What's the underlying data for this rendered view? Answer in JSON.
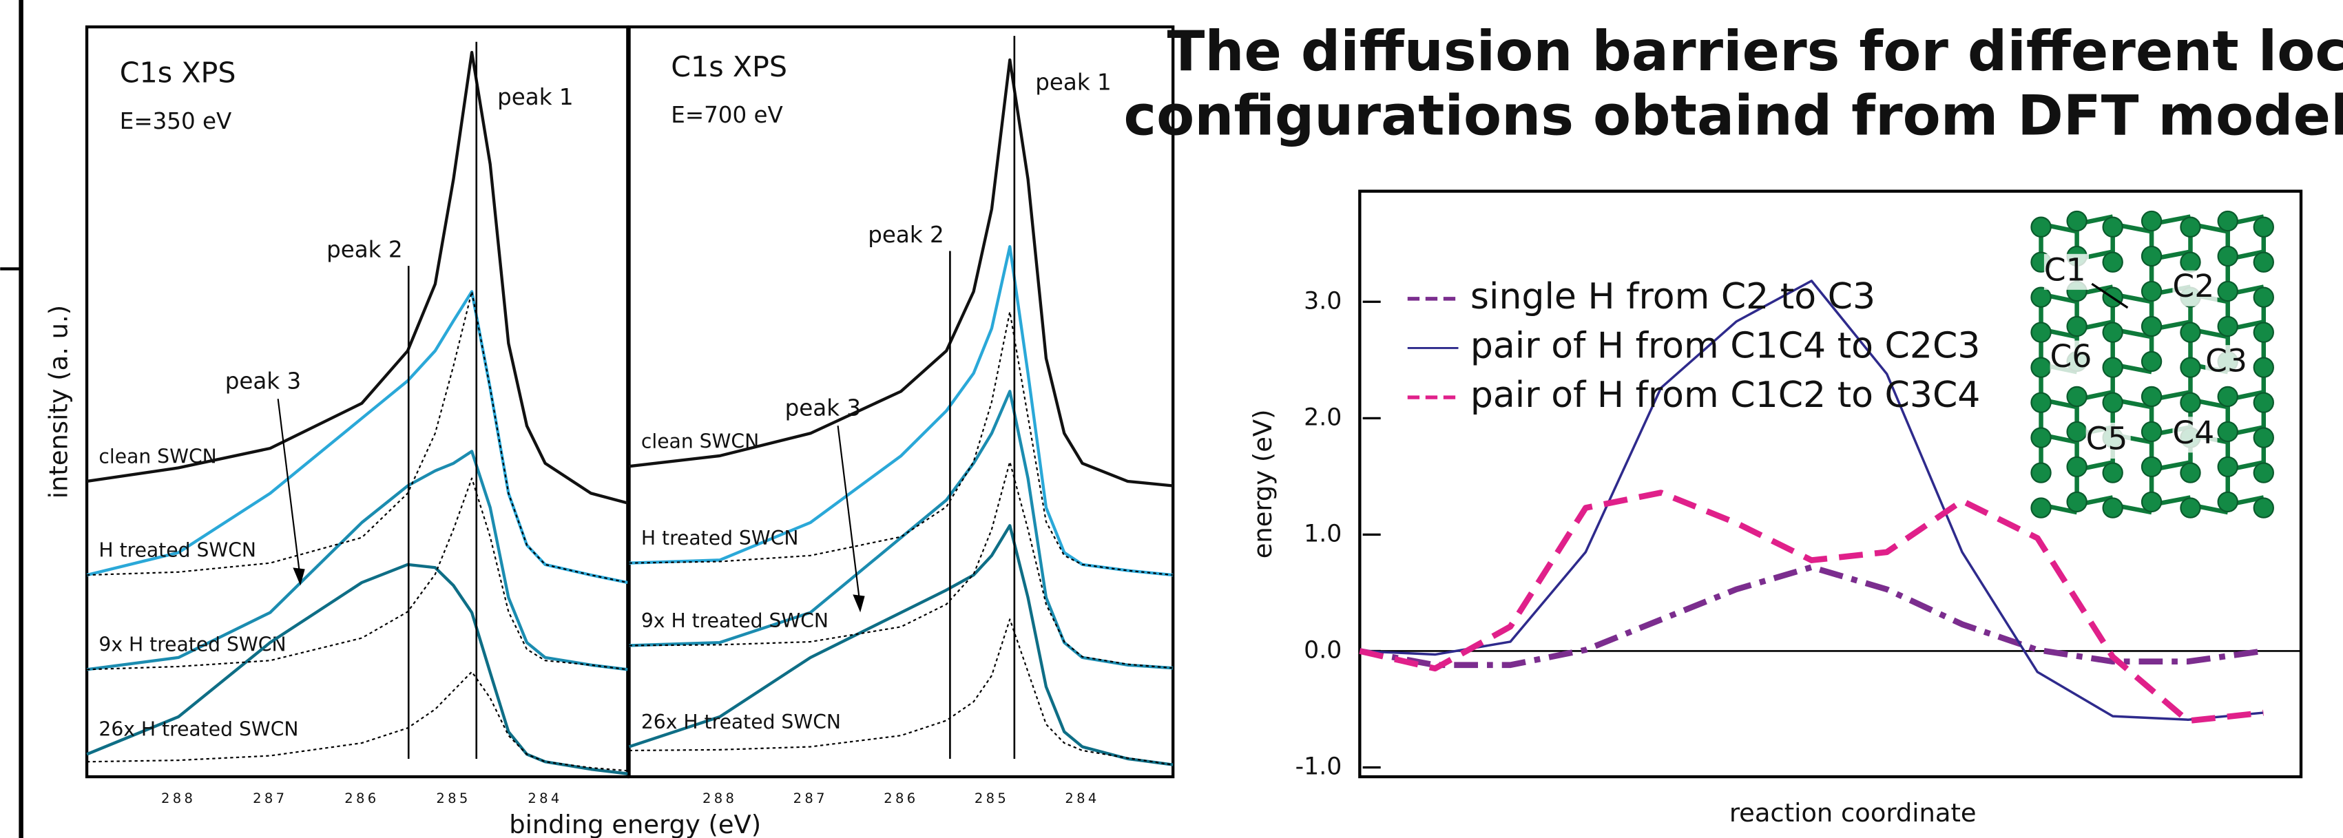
{
  "chart_data": [
    {
      "type": "line",
      "annotations": [
        "C1s XPS",
        "E=350 eV"
      ],
      "xlabel": "binding energy (eV)",
      "ylabel": "intensity (a. u.)",
      "x": [
        289,
        288,
        287,
        286,
        285.5,
        285.2,
        285,
        284.8,
        284.6,
        284.4,
        284.2,
        284,
        283.5,
        283.1
      ],
      "xlim": [
        289,
        283.1
      ],
      "xticks": [
        288,
        287,
        286,
        285,
        284
      ],
      "ylim": [
        0,
        100
      ],
      "series": [
        {
          "name": "clean SWCN",
          "color": "#111111",
          "style": "solid",
          "values": [
            39.4,
            41.2,
            43.8,
            49.8,
            56.8,
            65.7,
            79.7,
            96.6,
            81.7,
            57.8,
            46.8,
            41.8,
            37.8,
            36.5
          ]
        },
        {
          "name": "H treated SWCN",
          "color": "#2aa8d8",
          "style": "solid",
          "values": [
            26.9,
            29.9,
            37.8,
            47.8,
            52.8,
            56.8,
            60.8,
            64.7,
            51.8,
            37.8,
            30.9,
            28.3,
            26.9,
            25.9
          ]
        },
        {
          "name": "9x H treated SWCN",
          "color": "#1b8cb0",
          "style": "solid",
          "values": [
            14.3,
            15.9,
            21.9,
            33.9,
            38.8,
            40.8,
            41.8,
            43.4,
            35.9,
            23.9,
            17.9,
            15.9,
            14.9,
            14.3
          ]
        },
        {
          "name": "26x H treated SWCN",
          "color": "#0e6e86",
          "style": "solid",
          "values": [
            3.0,
            8.0,
            17.9,
            25.9,
            28.3,
            27.9,
            25.5,
            21.9,
            13.9,
            6.0,
            3.0,
            2.0,
            1.0,
            0.4
          ]
        },
        {
          "color": "#000000",
          "style": "dotted",
          "values": [
            26.9,
            27.3,
            28.5,
            31.9,
            37.8,
            45.8,
            54.8,
            64.7,
            51.8,
            37.8,
            30.9,
            28.3,
            26.9,
            25.9
          ]
        },
        {
          "color": "#000000",
          "style": "dotted",
          "values": [
            14.3,
            14.7,
            15.5,
            18.5,
            22,
            27,
            33,
            39.8,
            32,
            22,
            17,
            15.5,
            14.9,
            14.3
          ]
        },
        {
          "color": "#000000",
          "style": "dotted",
          "values": [
            2.0,
            2.2,
            2.8,
            4.5,
            6.5,
            9.0,
            11.5,
            14.0,
            10.5,
            5.5,
            3.0,
            2.0,
            1.2,
            0.8
          ]
        }
      ],
      "markers": [
        {
          "label": "peak 1",
          "x": 284.75,
          "style": "line"
        },
        {
          "label": "peak 2",
          "x": 285.49,
          "style": "line"
        },
        {
          "label": "peak 3",
          "x": 286.67,
          "style": "arrow"
        }
      ]
    },
    {
      "type": "line",
      "annotations": [
        "C1s XPS",
        "E=700 eV"
      ],
      "x": [
        289,
        288,
        287,
        286,
        285.5,
        285.2,
        285,
        284.8,
        284.6,
        284.4,
        284.2,
        284,
        283.5,
        283.0
      ],
      "xlim": [
        289,
        283.0
      ],
      "xticks": [
        288,
        287,
        286,
        285,
        284
      ],
      "ylim": [
        0,
        100
      ],
      "series": [
        {
          "name": "clean SWCN",
          "color": "#111111",
          "style": "solid",
          "values": [
            41.4,
            42.8,
            45.8,
            51.4,
            56.8,
            64.7,
            75.7,
            95.6,
            79.7,
            55.8,
            45.8,
            41.8,
            39.4,
            38.8
          ]
        },
        {
          "name": "H treated SWCN",
          "color": "#2aa8d8",
          "style": "solid",
          "values": [
            28.5,
            28.9,
            33.9,
            42.8,
            48.8,
            53.8,
            59.8,
            70.7,
            53.8,
            35.9,
            29.9,
            28.3,
            27.5,
            26.9
          ]
        },
        {
          "name": "9x H treated SWCN",
          "color": "#1b8cb0",
          "style": "solid",
          "values": [
            17.5,
            17.9,
            21.9,
            31.9,
            36.9,
            41.8,
            45.8,
            51.4,
            39.8,
            23.9,
            17.9,
            15.9,
            14.9,
            14.5
          ]
        },
        {
          "name": "26x H treated SWCN",
          "color": "#0e6e86",
          "style": "solid",
          "values": [
            4.0,
            8.0,
            15.9,
            21.9,
            24.9,
            26.9,
            29.5,
            33.5,
            23.9,
            12.0,
            6.0,
            4.0,
            2.4,
            1.6
          ]
        },
        {
          "color": "#000000",
          "style": "dotted",
          "values": [
            28.5,
            28.7,
            29.5,
            32,
            36,
            42,
            50,
            62,
            48,
            34,
            29.5,
            28.3,
            27.5,
            26.9
          ]
        },
        {
          "color": "#000000",
          "style": "dotted",
          "values": [
            17.5,
            17.6,
            18,
            20,
            23,
            27,
            33,
            42,
            33,
            23,
            18,
            16,
            15,
            14.5
          ]
        },
        {
          "color": "#000000",
          "style": "dotted",
          "values": [
            3.5,
            3.6,
            4,
            5.5,
            7.5,
            10,
            13.5,
            21,
            14,
            7,
            4.5,
            3.5,
            2.5,
            1.6
          ]
        }
      ],
      "markers": [
        {
          "label": "peak 1",
          "x": 284.75,
          "style": "line"
        },
        {
          "label": "peak 2",
          "x": 285.46,
          "style": "line"
        },
        {
          "label": "peak 3",
          "x": 286.45,
          "style": "arrow"
        }
      ]
    },
    {
      "type": "line",
      "title": [
        "The diffusion barriers for different local",
        "configurations obtaind from DFT modeling"
      ],
      "xlabel": "reaction coordinate",
      "ylabel": "energy (eV)",
      "x": [
        0,
        8,
        16,
        24,
        32,
        40,
        48,
        56,
        64,
        72,
        80,
        88,
        96
      ],
      "xlim": [
        0,
        100
      ],
      "ylim": [
        -1.08,
        3.95
      ],
      "yticks": [
        {
          "value": 3,
          "label": "3.0"
        },
        {
          "value": 2,
          "label": "2.0"
        },
        {
          "value": 1,
          "label": "1.0"
        },
        {
          "value": 0,
          "label": "0.0"
        },
        {
          "value": -1,
          "label": "-1.0"
        }
      ],
      "zero_line": true,
      "legend": "upper left",
      "series": [
        {
          "name": "single H from C2 to C3",
          "color": "#7b2d8e",
          "style": "dashdot",
          "values": [
            0,
            -0.12,
            -0.12,
            0.01,
            0.27,
            0.53,
            0.72,
            0.53,
            0.23,
            0.01,
            -0.09,
            -0.09,
            0.0
          ]
        },
        {
          "name": "pair of H from C1C4 to C2C3",
          "color": "#2e2a8c",
          "style": "solid",
          "values": [
            0,
            -0.03,
            0.08,
            0.85,
            2.26,
            2.83,
            3.18,
            2.38,
            0.85,
            -0.18,
            -0.56,
            -0.59,
            -0.53
          ]
        },
        {
          "name": "pair of H from C1C2 to C3C4",
          "color": "#e0208a",
          "style": "dashed",
          "values": [
            0,
            -0.15,
            0.21,
            1.23,
            1.36,
            1.1,
            0.78,
            0.85,
            1.29,
            0.97,
            -0.05,
            -0.6,
            -0.53
          ]
        }
      ],
      "inset_labels": [
        "C1",
        "C2",
        "C3",
        "C4",
        "C5",
        "C6"
      ]
    }
  ]
}
